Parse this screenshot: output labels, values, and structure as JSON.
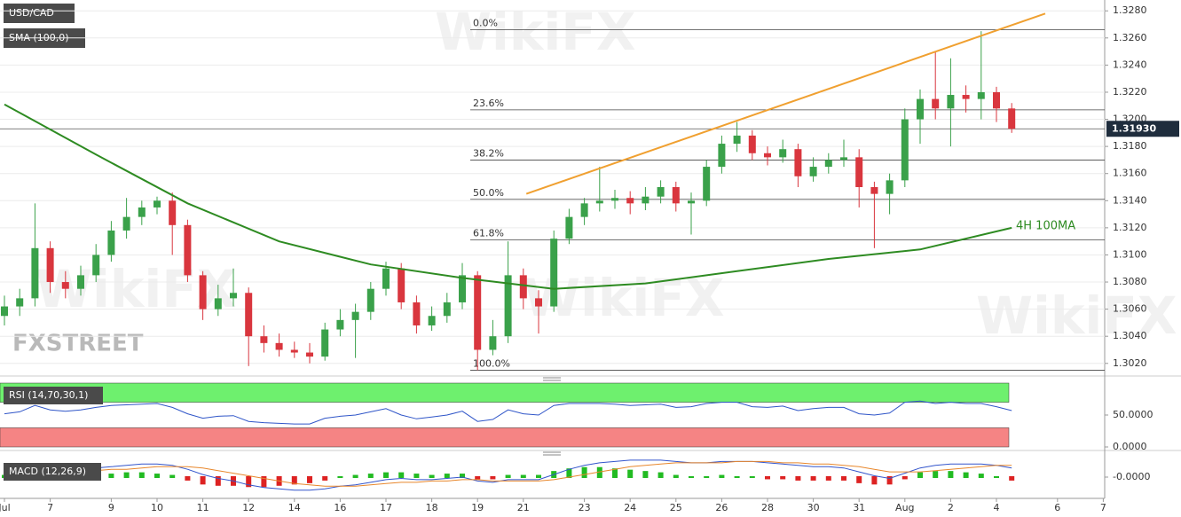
{
  "chart_data": {
    "type": "candlestick",
    "title": "USD/CAD",
    "indicator_label": "SMA (100,0)",
    "logo": "FXSTREET",
    "watermark": "WikiFX",
    "up_color": "#3aa14a",
    "down_color": "#d9363e",
    "grid": true,
    "ylim": [
      1.3012,
      1.3288
    ],
    "yticks": [
      {
        "value": 1.302,
        "label": "1.3020"
      },
      {
        "value": 1.304,
        "label": "1.3040"
      },
      {
        "value": 1.306,
        "label": "1.3060"
      },
      {
        "value": 1.308,
        "label": "1.3080"
      },
      {
        "value": 1.31,
        "label": "1.3100"
      },
      {
        "value": 1.312,
        "label": "1.3120"
      },
      {
        "value": 1.314,
        "label": "1.3140"
      },
      {
        "value": 1.316,
        "label": "1.3160"
      },
      {
        "value": 1.318,
        "label": "1.3180"
      },
      {
        "value": 1.32,
        "label": "1.3200"
      },
      {
        "value": 1.322,
        "label": "1.3220"
      },
      {
        "value": 1.324,
        "label": "1.3240"
      },
      {
        "value": 1.326,
        "label": "1.3260"
      },
      {
        "value": 1.328,
        "label": "1.3280"
      }
    ],
    "categories": [
      "Jul",
      null,
      null,
      "7",
      null,
      null,
      null,
      "9",
      null,
      null,
      "10",
      null,
      null,
      "11",
      null,
      null,
      "12",
      null,
      null,
      "14",
      null,
      null,
      "16",
      null,
      null,
      "17",
      null,
      null,
      "18",
      null,
      null,
      "19",
      null,
      null,
      "21",
      null,
      null,
      null,
      "23",
      null,
      null,
      "24",
      null,
      null,
      "25",
      null,
      null,
      "26",
      null,
      null,
      "28",
      null,
      null,
      "30",
      null,
      null,
      "31",
      null,
      null,
      "Aug",
      null,
      null,
      "2",
      null,
      null,
      "4",
      null,
      null,
      null,
      "6",
      null,
      null,
      "7"
    ],
    "series": [
      {
        "name": "USD/CAD",
        "open": [
          1.3055,
          1.3062,
          1.3068,
          1.3105,
          1.308,
          1.3075,
          1.3085,
          1.31,
          1.3118,
          1.3128,
          1.3135,
          1.314,
          1.3122,
          1.3085,
          1.306,
          1.3068,
          1.3072,
          1.304,
          1.3035,
          1.303,
          1.3028,
          1.3025,
          1.3045,
          1.3052,
          1.3058,
          1.3075,
          1.309,
          1.3065,
          1.3048,
          1.3055,
          1.3065,
          1.3085,
          1.303,
          1.304,
          1.3085,
          1.3068,
          1.3062,
          1.3112,
          1.3128,
          1.3138,
          1.314,
          1.3142,
          1.3138,
          1.3143,
          1.315,
          1.3138,
          1.314,
          1.3165,
          1.3182,
          1.3188,
          1.3175,
          1.3172,
          1.3178,
          1.3158,
          1.3165,
          1.317,
          1.3172,
          1.315,
          1.3145,
          1.3155,
          1.32,
          1.3215,
          1.3208,
          1.3218,
          1.3215,
          1.322,
          1.3208,
          null,
          null,
          null,
          null,
          null,
          null
        ],
        "high": [
          1.307,
          1.3075,
          1.3138,
          1.311,
          1.3088,
          1.3092,
          1.3108,
          1.3125,
          1.3142,
          1.314,
          1.3143,
          1.3146,
          1.3126,
          1.3088,
          1.3078,
          1.309,
          1.3076,
          1.3048,
          1.3042,
          1.3036,
          1.3035,
          1.305,
          1.306,
          1.3064,
          1.308,
          1.3095,
          1.3094,
          1.307,
          1.3062,
          1.3072,
          1.3094,
          1.3088,
          1.3052,
          1.311,
          1.309,
          1.3074,
          1.3118,
          1.3134,
          1.3142,
          1.3165,
          1.3148,
          1.3147,
          1.315,
          1.3155,
          1.3154,
          1.3146,
          1.317,
          1.3188,
          1.3198,
          1.3192,
          1.318,
          1.3185,
          1.3182,
          1.3172,
          1.3175,
          1.3185,
          1.3178,
          1.3154,
          1.316,
          1.3208,
          1.3222,
          1.325,
          1.3245,
          1.3225,
          1.3265,
          1.3224,
          1.3212,
          null,
          null,
          null,
          null,
          null,
          null
        ],
        "low": [
          1.3048,
          1.3055,
          1.3062,
          1.3072,
          1.3068,
          1.307,
          1.308,
          1.3095,
          1.3112,
          1.3122,
          1.313,
          1.31,
          1.308,
          1.3052,
          1.3055,
          1.3062,
          1.3018,
          1.3028,
          1.3025,
          1.3024,
          1.302,
          1.3022,
          1.304,
          1.3024,
          1.3052,
          1.307,
          1.306,
          1.3042,
          1.3044,
          1.305,
          1.306,
          1.3015,
          1.3026,
          1.3035,
          1.306,
          1.3042,
          1.3058,
          1.3108,
          1.3122,
          1.3132,
          1.3134,
          1.313,
          1.3133,
          1.3138,
          1.3132,
          1.3115,
          1.3136,
          1.316,
          1.3176,
          1.317,
          1.3166,
          1.3168,
          1.315,
          1.3154,
          1.316,
          1.3165,
          1.3135,
          1.3105,
          1.313,
          1.315,
          1.3182,
          1.32,
          1.318,
          1.3205,
          1.32,
          1.3198,
          1.319,
          null,
          null,
          null,
          null,
          null,
          null
        ],
        "close": [
          1.3062,
          1.3068,
          1.3105,
          1.308,
          1.3075,
          1.3085,
          1.31,
          1.3118,
          1.3128,
          1.3135,
          1.314,
          1.3122,
          1.3085,
          1.306,
          1.3068,
          1.3072,
          1.304,
          1.3035,
          1.303,
          1.3028,
          1.3025,
          1.3045,
          1.3052,
          1.3058,
          1.3075,
          1.309,
          1.3065,
          1.3048,
          1.3055,
          1.3065,
          1.3085,
          1.303,
          1.304,
          1.3085,
          1.3068,
          1.3062,
          1.3112,
          1.3128,
          1.3138,
          1.314,
          1.3142,
          1.3138,
          1.3143,
          1.315,
          1.3138,
          1.314,
          1.3165,
          1.3182,
          1.3188,
          1.3175,
          1.3172,
          1.3178,
          1.3158,
          1.3165,
          1.317,
          1.3172,
          1.315,
          1.3145,
          1.3155,
          1.32,
          1.3215,
          1.3208,
          1.3218,
          1.3215,
          1.322,
          1.3208,
          1.3193,
          null,
          null,
          null,
          null,
          null,
          null
        ]
      }
    ],
    "last_price": {
      "value": 1.3193,
      "label": "1.31930"
    },
    "sma": {
      "name": "4H 100MA",
      "color": "#2e8b22",
      "x": [
        0,
        6,
        12,
        18,
        24,
        30,
        36,
        42,
        48,
        54,
        60,
        66
      ],
      "values": [
        1.3211,
        1.3174,
        1.3138,
        1.311,
        1.3093,
        1.3083,
        1.3075,
        1.3079,
        1.3088,
        1.3097,
        1.3104,
        1.312
      ]
    },
    "trendline": {
      "color": "#f0a030",
      "x": [
        34.2,
        68.2
      ],
      "values": [
        1.3145,
        1.3278
      ]
    },
    "fib_levels": [
      {
        "label": "0.0%",
        "value": 1.3266
      },
      {
        "label": "23.6%",
        "value": 1.3207
      },
      {
        "label": "38.2%",
        "value": 1.317
      },
      {
        "label": "50.0%",
        "value": 1.3141
      },
      {
        "label": "61.8%",
        "value": 1.3111
      },
      {
        "label": "100.0%",
        "value": 1.3015
      }
    ],
    "rsi": {
      "label": "RSI (14,70,30,1)",
      "color": "#2f55c8",
      "ylim": [
        0,
        100
      ],
      "yticks": [
        {
          "value": 50,
          "label": "50.0000"
        },
        {
          "value": 0,
          "label": "0.0000"
        }
      ],
      "bands": [
        {
          "from": 70,
          "to": 100,
          "color": "#6ef06e"
        },
        {
          "from": 0,
          "to": 30,
          "color": "#f58484"
        }
      ],
      "values": [
        52,
        55,
        65,
        58,
        56,
        58,
        62,
        65,
        66,
        67,
        68,
        62,
        52,
        45,
        48,
        49,
        40,
        38,
        37,
        36,
        36,
        45,
        48,
        50,
        55,
        60,
        50,
        44,
        47,
        50,
        56,
        40,
        43,
        58,
        52,
        50,
        65,
        68,
        68,
        68,
        67,
        65,
        66,
        67,
        62,
        63,
        68,
        70,
        70,
        63,
        62,
        64,
        57,
        60,
        62,
        62,
        52,
        50,
        53,
        70,
        72,
        68,
        70,
        68,
        68,
        63,
        57,
        null,
        null,
        null,
        null,
        null,
        null
      ]
    },
    "macd": {
      "label": "MACD (12,26,9)",
      "macd_color": "#3355cc",
      "signal_color": "#e8872c",
      "pos_color": "#22bb22",
      "neg_color": "#dd2222",
      "ylim": [
        -0.0015,
        0.0015
      ],
      "yticks": [
        {
          "value": 0,
          "label": "-0.0000"
        }
      ],
      "macd": [
        0.0002,
        0.0003,
        0.0004,
        0.0005,
        0.0005,
        0.0006,
        0.0007,
        0.0008,
        0.0009,
        0.001,
        0.001,
        0.0009,
        0.0006,
        0.0002,
        -0.0001,
        -0.0003,
        -0.0006,
        -0.0008,
        -0.0009,
        -0.001,
        -0.001,
        -0.0009,
        -0.0007,
        -0.0006,
        -0.0004,
        -0.0002,
        -0.0001,
        -0.0002,
        -0.0002,
        -0.0001,
        0,
        -0.0003,
        -0.0004,
        -0.0002,
        -0.0002,
        -0.0002,
        0.0002,
        0.0006,
        0.0009,
        0.0011,
        0.0012,
        0.0013,
        0.0013,
        0.0013,
        0.0012,
        0.0011,
        0.0011,
        0.0012,
        0.0012,
        0.0012,
        0.0011,
        0.001,
        0.0009,
        0.0008,
        0.0008,
        0.0007,
        0.0004,
        0.0001,
        -0.0001,
        0.0003,
        0.0007,
        0.0009,
        0.001,
        0.001,
        0.001,
        0.0009,
        0.0007,
        null,
        null,
        null,
        null,
        null,
        null
      ],
      "signal": [
        0.0001,
        0.0002,
        0.0002,
        0.0003,
        0.0004,
        0.0004,
        0.0005,
        0.0006,
        0.0006,
        0.0007,
        0.0008,
        0.0008,
        0.0008,
        0.0007,
        0.0005,
        0.0003,
        0.0001,
        -0.0001,
        -0.0003,
        -0.0005,
        -0.0006,
        -0.0007,
        -0.0007,
        -0.0007,
        -0.0006,
        -0.0005,
        -0.0004,
        -0.0004,
        -0.0003,
        -0.0003,
        -0.0002,
        -0.0002,
        -0.0003,
        -0.0003,
        -0.0003,
        -0.0003,
        -0.0002,
        0,
        0.0002,
        0.0004,
        0.0006,
        0.0008,
        0.0009,
        0.001,
        0.0011,
        0.0011,
        0.0011,
        0.0011,
        0.0012,
        0.0012,
        0.0012,
        0.0011,
        0.0011,
        0.001,
        0.001,
        0.0009,
        0.0008,
        0.0006,
        0.0004,
        0.0004,
        0.0004,
        0.0005,
        0.0006,
        0.0007,
        0.0008,
        0.0009,
        0.0009,
        null,
        null,
        null,
        null,
        null,
        null
      ],
      "histogram": [
        0.0001,
        0.0001,
        0.0002,
        0.0002,
        0.0001,
        0.0002,
        0.0002,
        0.0002,
        0.0003,
        0.0003,
        0.0002,
        0.0001,
        -0.0002,
        -0.0005,
        -0.0006,
        -0.0006,
        -0.0007,
        -0.0007,
        -0.0006,
        -0.0005,
        -0.0004,
        -0.0002,
        0,
        0.0001,
        0.0002,
        0.0003,
        0.0003,
        0.0002,
        0.0001,
        0.0002,
        0.0002,
        -0.0001,
        -0.0001,
        0.0001,
        0.0001,
        0.0001,
        0.0004,
        0.0006,
        0.0007,
        0.0007,
        0.0006,
        0.0005,
        0.0004,
        0.0003,
        0.0001,
        0,
        0,
        0.0001,
        0,
        0,
        -0.0001,
        -0.0001,
        -0.0002,
        -0.0002,
        -0.0002,
        -0.0002,
        -0.0004,
        -0.0005,
        -0.0005,
        -0.0001,
        0.0003,
        0.0004,
        0.0004,
        0.0003,
        0.0002,
        0,
        -0.0002,
        null,
        null,
        null,
        null,
        null,
        null
      ]
    }
  }
}
